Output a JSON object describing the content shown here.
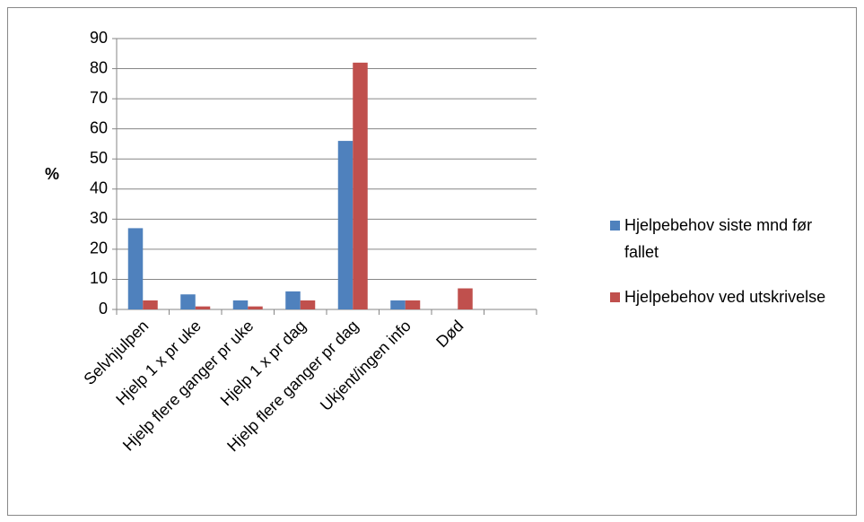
{
  "chart_data": {
    "type": "bar",
    "y_label": "%",
    "categories": [
      "Selvhjulpen",
      "Hjelp 1 x pr uke",
      "Hjelp flere ganger pr uke",
      "Hjelp 1 x pr dag",
      "Hjelp flere ganger pr dag",
      "Ukjent/ingen info",
      "Død",
      null
    ],
    "series": [
      {
        "name": "Hjelpebehov siste mnd før fallet",
        "color": "#4f81bd",
        "values": [
          27,
          5,
          3,
          6,
          56,
          3,
          0,
          null
        ]
      },
      {
        "name": "Hjelpebehov ved utskrivelse",
        "color": "#c0504d",
        "values": [
          3,
          1,
          1,
          3,
          82,
          3,
          7,
          null
        ]
      }
    ],
    "ylim": [
      0,
      90
    ],
    "yticks": [
      0,
      10,
      20,
      30,
      40,
      50,
      60,
      70,
      80,
      90
    ],
    "grid": true,
    "legend": "right"
  }
}
